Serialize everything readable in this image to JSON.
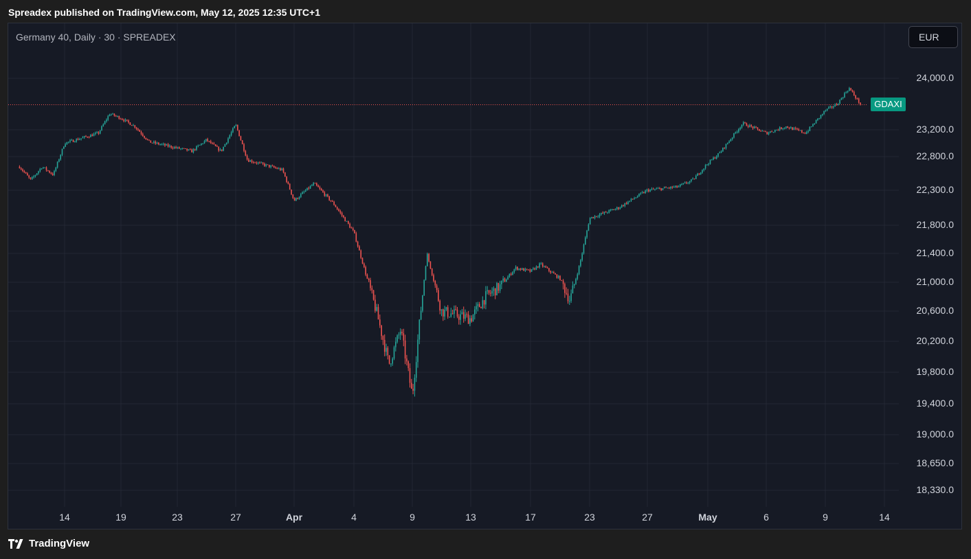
{
  "header": {
    "caption": "Spreadex published on TradingView.com, May 12, 2025 12:35 UTC+1"
  },
  "symbol_title": "Germany 40, Daily · 30 · SPREADEX",
  "currency_button": "EUR",
  "ticker_badge": "GDAXI",
  "brand": {
    "name": "TradingView",
    "logo_icon": "tradingview-logo-icon"
  },
  "colors": {
    "up": "#26a69a",
    "down": "#ef5350",
    "price_line": "#ef5350",
    "badge": "#089981"
  },
  "chart_data": {
    "type": "candlestick",
    "title": "Germany 40, Daily · 30 · SPREADEX",
    "symbol": "GDAXI",
    "currency": "EUR",
    "x_tick_labels": [
      "14",
      "19",
      "23",
      "27",
      "Apr",
      "4",
      "9",
      "13",
      "17",
      "23",
      "27",
      "May",
      "6",
      "9",
      "14"
    ],
    "y_tick_labels": [
      "24,000.0",
      "23,200.0",
      "22,800.0",
      "22,300.0",
      "21,800.0",
      "21,400.0",
      "21,000.0",
      "20,600.0",
      "20,200.0",
      "19,800.0",
      "19,400.0",
      "19,000.0",
      "18,650.0",
      "18,330.0"
    ],
    "y_ticks": [
      24000,
      23200,
      22800,
      22300,
      21800,
      21400,
      21000,
      20600,
      20200,
      19800,
      19400,
      19000,
      18650,
      18330
    ],
    "last_price": 23590,
    "grid": true,
    "path": [
      {
        "date": "2025-03-10",
        "price": 22650
      },
      {
        "date": "2025-03-11",
        "price": 22450
      },
      {
        "date": "2025-03-12",
        "price": 22650
      },
      {
        "date": "2025-03-13",
        "price": 22530
      },
      {
        "date": "2025-03-14",
        "price": 23000
      },
      {
        "date": "2025-03-17",
        "price": 23150
      },
      {
        "date": "2025-03-18",
        "price": 23450
      },
      {
        "date": "2025-03-19",
        "price": 23380
      },
      {
        "date": "2025-03-20",
        "price": 23250
      },
      {
        "date": "2025-03-21",
        "price": 23020
      },
      {
        "date": "2025-03-24",
        "price": 22880
      },
      {
        "date": "2025-03-25",
        "price": 23050
      },
      {
        "date": "2025-03-26",
        "price": 22880
      },
      {
        "date": "2025-03-27",
        "price": 23280
      },
      {
        "date": "2025-03-28",
        "price": 22750
      },
      {
        "date": "2025-03-31",
        "price": 22600
      },
      {
        "date": "2025-04-01",
        "price": 22150
      },
      {
        "date": "2025-04-02",
        "price": 22400
      },
      {
        "date": "2025-04-03",
        "price": 22100
      },
      {
        "date": "2025-04-04",
        "price": 21700
      },
      {
        "date": "2025-04-06",
        "price": 20550
      },
      {
        "date": "2025-04-07",
        "price": 19900
      },
      {
        "date": "2025-04-08",
        "price": 20350
      },
      {
        "date": "2025-04-09",
        "price": 19500
      },
      {
        "date": "2025-04-10",
        "price": 21400
      },
      {
        "date": "2025-04-11",
        "price": 20600
      },
      {
        "date": "2025-04-13",
        "price": 20500
      },
      {
        "date": "2025-04-14",
        "price": 20800
      },
      {
        "date": "2025-04-15",
        "price": 20950
      },
      {
        "date": "2025-04-16",
        "price": 21200
      },
      {
        "date": "2025-04-17",
        "price": 21150
      },
      {
        "date": "2025-04-18",
        "price": 21250
      },
      {
        "date": "2025-04-20",
        "price": 21050
      },
      {
        "date": "2025-04-21",
        "price": 20750
      },
      {
        "date": "2025-04-22",
        "price": 21250
      },
      {
        "date": "2025-04-23",
        "price": 21900
      },
      {
        "date": "2025-04-25",
        "price": 22050
      },
      {
        "date": "2025-04-27",
        "price": 22300
      },
      {
        "date": "2025-04-29",
        "price": 22350
      },
      {
        "date": "2025-04-30",
        "price": 22450
      },
      {
        "date": "2025-05-01",
        "price": 22700
      },
      {
        "date": "2025-05-02",
        "price": 22850
      },
      {
        "date": "2025-05-04",
        "price": 23300
      },
      {
        "date": "2025-05-06",
        "price": 23150
      },
      {
        "date": "2025-05-07",
        "price": 23250
      },
      {
        "date": "2025-05-08",
        "price": 23150
      },
      {
        "date": "2025-05-09",
        "price": 23500
      },
      {
        "date": "2025-05-10",
        "price": 23600
      },
      {
        "date": "2025-05-11",
        "price": 23850
      },
      {
        "date": "2025-05-12",
        "price": 23590
      }
    ]
  }
}
